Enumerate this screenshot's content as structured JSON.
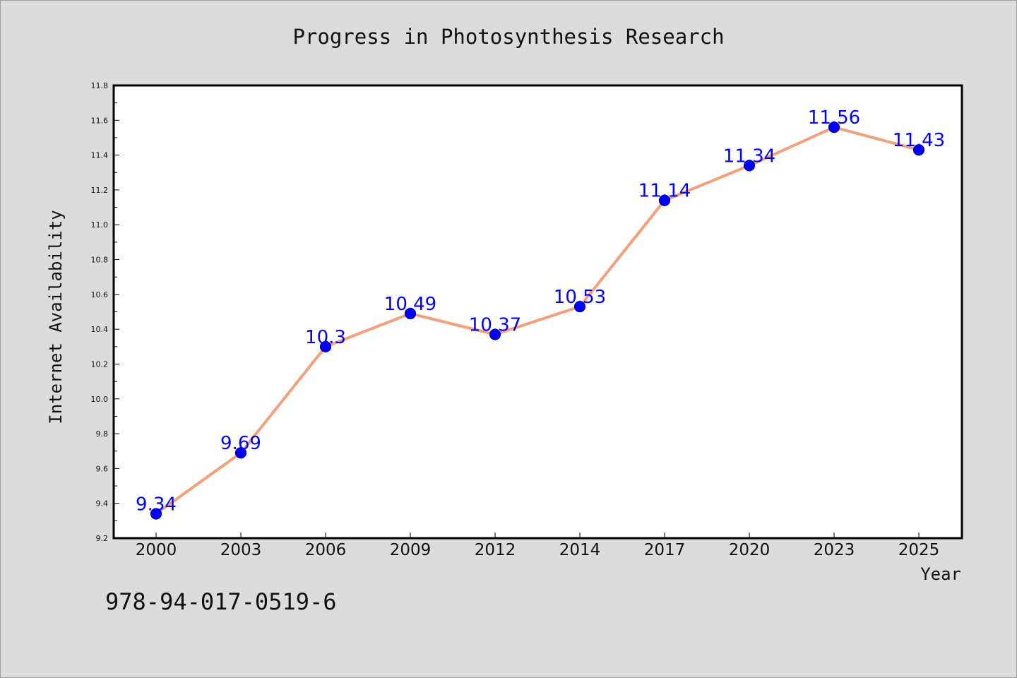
{
  "chart_data": {
    "type": "line",
    "title": "Progress in Photosynthesis Research",
    "xlabel": "Year",
    "ylabel": "Internet Availability",
    "categories": [
      "2000",
      "2003",
      "2006",
      "2009",
      "2012",
      "2014",
      "2017",
      "2020",
      "2023",
      "2025"
    ],
    "values": [
      9.34,
      9.69,
      10.3,
      10.49,
      10.37,
      10.53,
      11.14,
      11.34,
      11.56,
      11.43
    ],
    "data_labels": [
      "9.34",
      "9.69",
      "10.3",
      "10.49",
      "10.37",
      "10.53",
      "11.14",
      "11.34",
      "11.56",
      "11.43"
    ],
    "ylim": [
      9.2,
      11.8
    ],
    "yticks": [
      "9.2",
      "9.4",
      "9.6",
      "9.8",
      "10.0",
      "10.2",
      "10.4",
      "10.6",
      "10.8",
      "11.0",
      "11.2",
      "11.4",
      "11.6",
      "11.8"
    ],
    "grid": false,
    "legend": "none",
    "colors": {
      "line": "#f4a07c",
      "marker_fill": "#0000ff",
      "marker_edge": "#000080",
      "data_label": "#0000ff",
      "background": "#dcdcdc",
      "plot_background": "#ffffff"
    }
  },
  "footer": {
    "isbn": "978-94-017-0519-6"
  }
}
